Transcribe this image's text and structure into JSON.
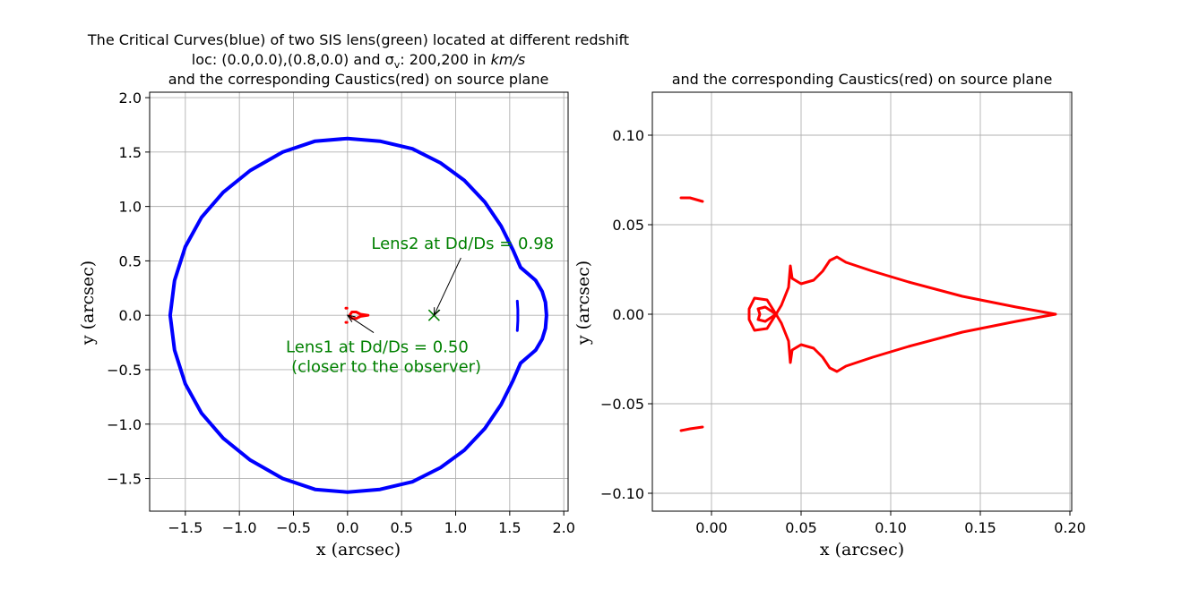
{
  "chart_data": [
    {
      "type": "scatter",
      "title_lines": [
        "The Critical Curves(blue) of two SIS lens(green) located at different redshift",
        "loc: (0.0,0.0),(0.8,0.0) and σ",
        "v",
        ": 200,200 in ",
        "km/s",
        "and the corresponding Caustics(red) on source plane"
      ],
      "xlabel": "x (arcsec)",
      "ylabel": "y (arcsec)",
      "xlim": [
        -1.83,
        2.04
      ],
      "ylim": [
        -1.8,
        2.05
      ],
      "xticks": [
        -1.5,
        -1.0,
        -0.5,
        0.0,
        0.5,
        1.0,
        1.5,
        2.0
      ],
      "xtick_labels": [
        "−1.5",
        "−1.0",
        "−0.5",
        "0.0",
        "0.5",
        "1.0",
        "1.5",
        "2.0"
      ],
      "yticks": [
        -1.5,
        -1.0,
        -0.5,
        0.0,
        0.5,
        1.0,
        1.5,
        2.0
      ],
      "ytick_labels": [
        "−1.5",
        "−1.0",
        "−0.5",
        "0.0",
        "0.5",
        "1.0",
        "1.5",
        "2.0"
      ],
      "grid": true,
      "series": [
        {
          "color": "#0000ff",
          "points": [
            [
              1.84,
              0.0
            ],
            [
              1.83,
              0.12
            ],
            [
              1.8,
              0.22
            ],
            [
              1.74,
              0.32
            ],
            [
              1.67,
              0.38
            ],
            [
              1.6,
              0.44
            ],
            [
              1.53,
              0.6
            ],
            [
              1.42,
              0.82
            ],
            [
              1.27,
              1.04
            ],
            [
              1.08,
              1.24
            ],
            [
              0.86,
              1.4
            ],
            [
              0.6,
              1.53
            ],
            [
              0.3,
              1.6
            ],
            [
              0.0,
              1.625
            ],
            [
              -0.3,
              1.6
            ],
            [
              -0.6,
              1.5
            ],
            [
              -0.9,
              1.33
            ],
            [
              -1.15,
              1.13
            ],
            [
              -1.35,
              0.9
            ],
            [
              -1.5,
              0.63
            ],
            [
              -1.6,
              0.32
            ],
            [
              -1.64,
              0.0
            ],
            [
              -1.6,
              -0.32
            ],
            [
              -1.5,
              -0.63
            ],
            [
              -1.35,
              -0.9
            ],
            [
              -1.15,
              -1.13
            ],
            [
              -0.9,
              -1.33
            ],
            [
              -0.6,
              -1.5
            ],
            [
              -0.3,
              -1.6
            ],
            [
              0.0,
              -1.625
            ],
            [
              0.3,
              -1.6
            ],
            [
              0.6,
              -1.53
            ],
            [
              0.86,
              -1.4
            ],
            [
              1.08,
              -1.24
            ],
            [
              1.27,
              -1.04
            ],
            [
              1.42,
              -0.82
            ],
            [
              1.53,
              -0.6
            ],
            [
              1.6,
              -0.44
            ],
            [
              1.67,
              -0.38
            ],
            [
              1.74,
              -0.32
            ],
            [
              1.8,
              -0.22
            ],
            [
              1.83,
              -0.12
            ],
            [
              1.84,
              0.0
            ]
          ]
        },
        {
          "color": "#0000ff",
          "points": [
            [
              1.57,
              0.13
            ],
            [
              1.575,
              0.05
            ],
            [
              1.575,
              -0.05
            ],
            [
              1.57,
              -0.14
            ]
          ]
        },
        {
          "color": "#ff0000",
          "points": [
            [
              0.02,
              0.0
            ],
            [
              0.04,
              0.03
            ],
            [
              0.08,
              0.03
            ],
            [
              0.12,
              0.01
            ],
            [
              0.19,
              0.0
            ],
            [
              0.12,
              -0.01
            ],
            [
              0.08,
              -0.03
            ],
            [
              0.04,
              -0.03
            ],
            [
              0.02,
              0.0
            ]
          ]
        },
        {
          "color": "#ff0000",
          "points": [
            [
              -0.015,
              0.065
            ],
            [
              -0.005,
              0.065
            ]
          ]
        },
        {
          "color": "#ff0000",
          "points": [
            [
              -0.015,
              -0.065
            ],
            [
              -0.005,
              -0.065
            ]
          ]
        },
        {
          "color": "#008000",
          "points": [
            [
              0.8,
              0.0
            ]
          ]
        }
      ],
      "annotations": [
        {
          "text": "Lens2 at Dd/Ds = 0.98",
          "xy": [
            0.8,
            0.0
          ],
          "text_at": [
            0.22,
            0.61
          ]
        },
        {
          "text": "Lens1 at Dd/Ds = 0.50",
          "xy": [
            0.0,
            0.0
          ],
          "text_at": [
            -0.57,
            -0.34
          ]
        },
        {
          "text": "(closer to the observer)",
          "xy": [
            0.0,
            0.0
          ],
          "text_at": [
            -0.52,
            -0.52
          ]
        }
      ]
    },
    {
      "type": "scatter",
      "title": "and the corresponding Caustics(red) on source plane",
      "xlabel": "x (arcsec)",
      "ylabel": "y (arcsec)",
      "xlim": [
        -0.033,
        0.201
      ],
      "ylim": [
        -0.11,
        0.124
      ],
      "xticks": [
        0.0,
        0.05,
        0.1,
        0.15,
        0.2
      ],
      "xtick_labels": [
        "0.00",
        "0.05",
        "0.10",
        "0.15",
        "0.20"
      ],
      "yticks": [
        -0.1,
        -0.05,
        0.0,
        0.05,
        0.1
      ],
      "ytick_labels": [
        "−0.10",
        "−0.05",
        "0.00",
        "0.05",
        "0.10"
      ],
      "grid": true,
      "series": [
        {
          "color": "#ff0000",
          "points": [
            [
              0.192,
              0.0
            ],
            [
              0.17,
              0.004
            ],
            [
              0.14,
              0.01
            ],
            [
              0.11,
              0.018
            ],
            [
              0.09,
              0.024
            ],
            [
              0.075,
              0.029
            ],
            [
              0.07,
              0.032
            ],
            [
              0.066,
              0.03
            ],
            [
              0.062,
              0.024
            ],
            [
              0.057,
              0.019
            ],
            [
              0.05,
              0.017
            ],
            [
              0.045,
              0.02
            ],
            [
              0.044,
              0.027
            ],
            [
              0.043,
              0.015
            ],
            [
              0.039,
              0.005
            ],
            [
              0.036,
              0.0
            ],
            [
              0.039,
              -0.005
            ],
            [
              0.043,
              -0.015
            ],
            [
              0.044,
              -0.027
            ],
            [
              0.045,
              -0.02
            ],
            [
              0.05,
              -0.017
            ],
            [
              0.057,
              -0.019
            ],
            [
              0.062,
              -0.024
            ],
            [
              0.066,
              -0.03
            ],
            [
              0.07,
              -0.032
            ],
            [
              0.075,
              -0.029
            ],
            [
              0.09,
              -0.024
            ],
            [
              0.11,
              -0.018
            ],
            [
              0.14,
              -0.01
            ],
            [
              0.17,
              -0.004
            ],
            [
              0.192,
              0.0
            ]
          ]
        },
        {
          "color": "#ff0000",
          "points": [
            [
              0.036,
              0.0
            ],
            [
              0.031,
              0.008
            ],
            [
              0.024,
              0.009
            ],
            [
              0.021,
              0.003
            ],
            [
              0.021,
              -0.003
            ],
            [
              0.024,
              -0.009
            ],
            [
              0.031,
              -0.008
            ],
            [
              0.036,
              0.0
            ]
          ]
        },
        {
          "color": "#ff0000",
          "points": [
            [
              0.036,
              0.0
            ],
            [
              0.03,
              0.004
            ],
            [
              0.026,
              0.003
            ],
            [
              0.027,
              0.0
            ],
            [
              0.026,
              -0.003
            ],
            [
              0.03,
              -0.004
            ],
            [
              0.036,
              0.0
            ]
          ]
        },
        {
          "color": "#ff0000",
          "points": [
            [
              -0.017,
              0.065
            ],
            [
              -0.012,
              0.065
            ],
            [
              -0.005,
              0.063
            ]
          ]
        },
        {
          "color": "#ff0000",
          "points": [
            [
              -0.017,
              -0.065
            ],
            [
              -0.012,
              -0.064
            ],
            [
              -0.005,
              -0.063
            ]
          ]
        }
      ]
    }
  ]
}
